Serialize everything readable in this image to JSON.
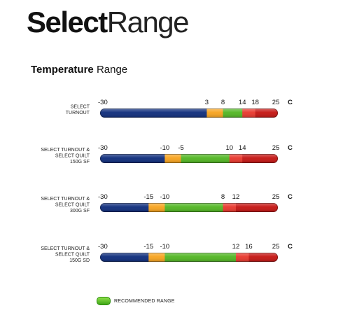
{
  "header": {
    "title_bold": "Select",
    "title_light": "Range",
    "subtitle_bold": "Temperature",
    "subtitle_light": "Range"
  },
  "colors": {
    "cold": "#0b2a7a",
    "cool": "#f7a21b",
    "recommended": "#4fb520",
    "warm": "#e8352a",
    "hot": "#c4120f"
  },
  "legend": {
    "label": "RECOMMENDED RANGE",
    "color": "#4fb520"
  },
  "chart_data": {
    "type": "bar",
    "unit": "C",
    "xlim": [
      -30,
      25
    ],
    "rows": [
      {
        "label_lines": [
          "SELECT",
          "TURNOUT"
        ],
        "ticks": [
          -30,
          3,
          8,
          14,
          18,
          25
        ],
        "segments": [
          {
            "from": -30,
            "to": 3,
            "color": "cold"
          },
          {
            "from": 3,
            "to": 8,
            "color": "cool"
          },
          {
            "from": 8,
            "to": 14,
            "color": "recommended"
          },
          {
            "from": 14,
            "to": 18,
            "color": "warm"
          },
          {
            "from": 18,
            "to": 25,
            "color": "hot"
          }
        ]
      },
      {
        "label_lines": [
          "SELECT TURNOUT &",
          "SELECT QUILT",
          "150G SF"
        ],
        "ticks": [
          -30,
          -10,
          -5,
          10,
          14,
          25
        ],
        "segments": [
          {
            "from": -30,
            "to": -10,
            "color": "cold"
          },
          {
            "from": -10,
            "to": -5,
            "color": "cool"
          },
          {
            "from": -5,
            "to": 10,
            "color": "recommended"
          },
          {
            "from": 10,
            "to": 14,
            "color": "warm"
          },
          {
            "from": 14,
            "to": 25,
            "color": "hot"
          }
        ]
      },
      {
        "label_lines": [
          "SELECT TURNOUT &",
          "SELECT QUILT",
          "300G SF"
        ],
        "ticks": [
          -30,
          -15,
          -10,
          8,
          12,
          25
        ],
        "segments": [
          {
            "from": -30,
            "to": -15,
            "color": "cold"
          },
          {
            "from": -15,
            "to": -10,
            "color": "cool"
          },
          {
            "from": -10,
            "to": 8,
            "color": "recommended"
          },
          {
            "from": 8,
            "to": 12,
            "color": "warm"
          },
          {
            "from": 12,
            "to": 25,
            "color": "hot"
          }
        ]
      },
      {
        "label_lines": [
          "SELECT TURNOUT &",
          "SELECT QUILT",
          "150G SD"
        ],
        "ticks": [
          -30,
          -15,
          -10,
          12,
          16,
          25
        ],
        "segments": [
          {
            "from": -30,
            "to": -15,
            "color": "cold"
          },
          {
            "from": -15,
            "to": -10,
            "color": "cool"
          },
          {
            "from": -10,
            "to": 12,
            "color": "recommended"
          },
          {
            "from": 12,
            "to": 16,
            "color": "warm"
          },
          {
            "from": 16,
            "to": 25,
            "color": "hot"
          }
        ]
      }
    ]
  }
}
